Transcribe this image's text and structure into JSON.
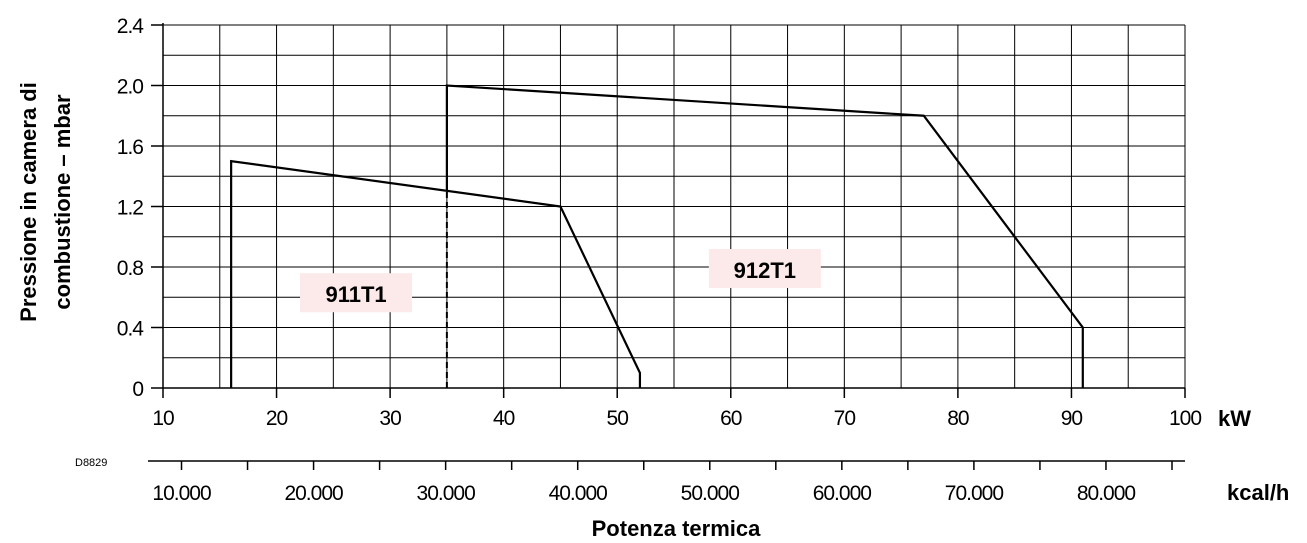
{
  "chart_data": {
    "type": "line",
    "title": "",
    "drawing_code": "D8829",
    "xlabel": "Potenza termica",
    "ylabel_lines": [
      "Pressione in camera di",
      "combustione – mbar"
    ],
    "x_unit_primary": "kW",
    "x_unit_secondary": "kcal/h",
    "xlim": [
      10,
      100
    ],
    "ylim": [
      0,
      2.4
    ],
    "x_ticks": [
      10,
      20,
      30,
      40,
      50,
      60,
      70,
      80,
      90,
      100
    ],
    "x_tick_labels": [
      "10",
      "20",
      "30",
      "40",
      "50",
      "60",
      "70",
      "80",
      "90",
      "100"
    ],
    "y_ticks": [
      0,
      0.4,
      0.8,
      1.2,
      1.6,
      2.0,
      2.4
    ],
    "y_tick_labels": [
      "0",
      "0.4",
      "0.8",
      "1.2",
      "1.6",
      "2.0",
      "2.4"
    ],
    "kcal_ticks": [
      10000,
      20000,
      30000,
      40000,
      50000,
      60000,
      70000,
      80000
    ],
    "kcal_tick_labels": [
      "10.000",
      "20.000",
      "30.000",
      "40.000",
      "50.000",
      "60.000",
      "70.000",
      "80.000"
    ],
    "grid": true,
    "series": [
      {
        "name": "911T1",
        "x": [
          16,
          16,
          45,
          52,
          52
        ],
        "y": [
          0,
          1.5,
          1.2,
          0.1,
          0
        ]
      },
      {
        "name": "912T1",
        "x": [
          35,
          35,
          77,
          91,
          91
        ],
        "y": [
          1.3,
          2.0,
          1.8,
          0.4,
          0
        ]
      }
    ],
    "dashed_segment": {
      "x": [
        35,
        35
      ],
      "y": [
        0,
        1.3
      ]
    },
    "label_color": "#fce9e9"
  }
}
